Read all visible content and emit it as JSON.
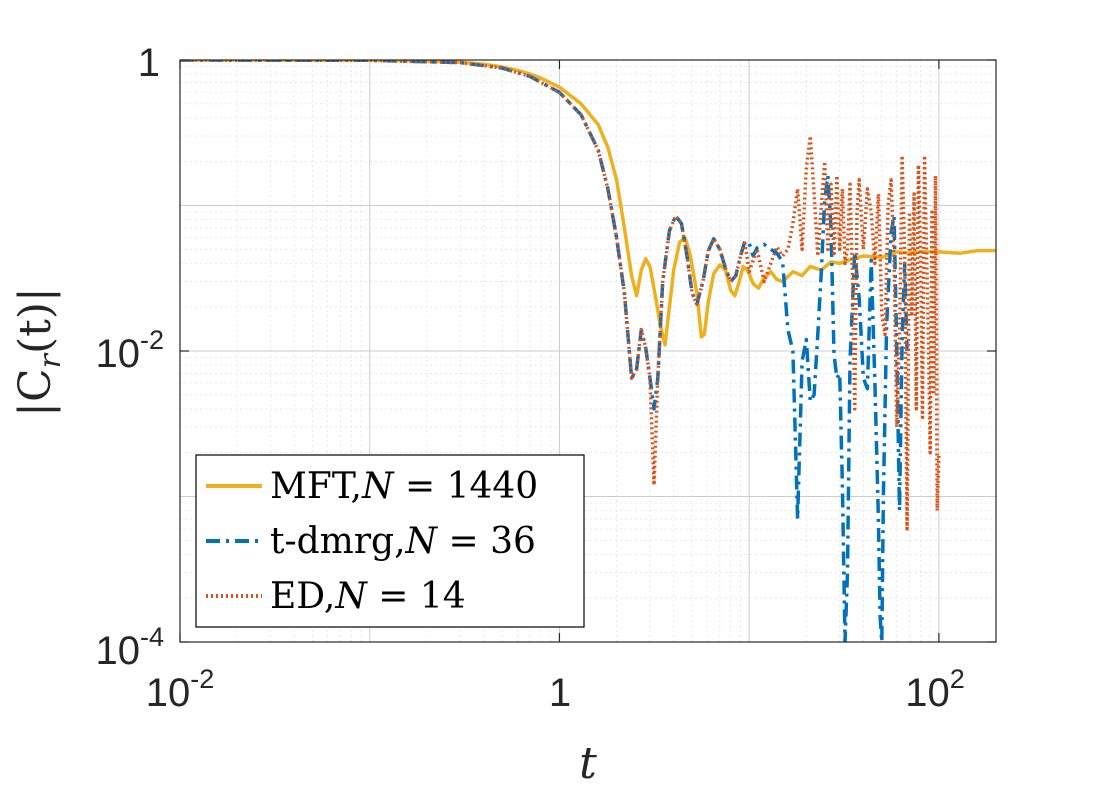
{
  "chart_data": {
    "type": "line",
    "xscale": "log",
    "yscale": "log",
    "xlim": [
      0.01,
      200
    ],
    "ylim": [
      0.0001,
      1
    ],
    "grid": true,
    "minor_grid": true,
    "xlabel": "t",
    "ylabel": "|C_r(t)|",
    "ylabel_display": "|C",
    "ylabel_sub": "r",
    "ylabel_tail": "(t)|",
    "xticks": [
      {
        "value": 0.01,
        "base": "10",
        "exp": "-2"
      },
      {
        "value": 1,
        "base": "1",
        "exp": ""
      },
      {
        "value": 100,
        "base": "10",
        "exp": "2"
      }
    ],
    "yticks": [
      {
        "value": 1,
        "base": "1",
        "exp": ""
      },
      {
        "value": 0.01,
        "base": "10",
        "exp": "-2"
      },
      {
        "value": 0.0001,
        "base": "10",
        "exp": "-4"
      }
    ],
    "legend_position": "bottom-left",
    "series": [
      {
        "name": "MFT,N = 1440",
        "label_prefix": "MFT,",
        "label_var": "N",
        "label_rest": " = 1440",
        "color": "#EDB120",
        "style": "solid",
        "points": [
          [
            0.01,
            1
          ],
          [
            0.05,
            0.999
          ],
          [
            0.1,
            0.995
          ],
          [
            0.2,
            0.985
          ],
          [
            0.3,
            0.965
          ],
          [
            0.4,
            0.935
          ],
          [
            0.5,
            0.895
          ],
          [
            0.6,
            0.85
          ],
          [
            0.7,
            0.8
          ],
          [
            0.8,
            0.75
          ],
          [
            1.0,
            0.65
          ],
          [
            1.3,
            0.5
          ],
          [
            1.6,
            0.36
          ],
          [
            1.8,
            0.25
          ],
          [
            2.0,
            0.15
          ],
          [
            2.2,
            0.07
          ],
          [
            2.4,
            0.033
          ],
          [
            2.55,
            0.024
          ],
          [
            2.7,
            0.036
          ],
          [
            2.85,
            0.043
          ],
          [
            3.0,
            0.038
          ],
          [
            3.2,
            0.024
          ],
          [
            3.4,
            0.015
          ],
          [
            3.6,
            0.011
          ],
          [
            3.8,
            0.02
          ],
          [
            4.0,
            0.036
          ],
          [
            4.3,
            0.056
          ],
          [
            4.6,
            0.06
          ],
          [
            4.9,
            0.045
          ],
          [
            5.3,
            0.025
          ],
          [
            5.6,
            0.0125
          ],
          [
            5.8,
            0.013
          ],
          [
            6.1,
            0.022
          ],
          [
            6.5,
            0.034
          ],
          [
            7.0,
            0.039
          ],
          [
            7.5,
            0.036
          ],
          [
            8.0,
            0.026
          ],
          [
            8.4,
            0.024
          ],
          [
            8.8,
            0.029
          ],
          [
            9.3,
            0.038
          ],
          [
            9.8,
            0.036
          ],
          [
            10.5,
            0.029
          ],
          [
            11.2,
            0.027
          ],
          [
            12,
            0.032
          ],
          [
            13,
            0.035
          ],
          [
            14,
            0.031
          ],
          [
            15,
            0.03
          ],
          [
            17,
            0.035
          ],
          [
            19,
            0.033
          ],
          [
            21,
            0.038
          ],
          [
            24,
            0.036
          ],
          [
            27,
            0.041
          ],
          [
            30,
            0.04
          ],
          [
            35,
            0.043
          ],
          [
            40,
            0.045
          ],
          [
            50,
            0.044
          ],
          [
            60,
            0.048
          ],
          [
            70,
            0.047
          ],
          [
            80,
            0.048
          ],
          [
            100,
            0.048
          ],
          [
            130,
            0.047
          ],
          [
            160,
            0.049
          ],
          [
            200,
            0.049
          ]
        ]
      },
      {
        "name": "t-dmrg,N = 36",
        "label_prefix": "t-dmrg,",
        "label_var": "N",
        "label_rest": " = 36",
        "color": "#0072BD",
        "style": "dashdot",
        "points": [
          [
            0.01,
            1
          ],
          [
            0.1,
            0.995
          ],
          [
            0.3,
            0.96
          ],
          [
            0.5,
            0.88
          ],
          [
            0.7,
            0.77
          ],
          [
            1.0,
            0.6
          ],
          [
            1.3,
            0.42
          ],
          [
            1.6,
            0.24
          ],
          [
            1.8,
            0.13
          ],
          [
            2.0,
            0.06
          ],
          [
            2.2,
            0.025
          ],
          [
            2.4,
            0.0065
          ],
          [
            2.55,
            0.0075
          ],
          [
            2.7,
            0.014
          ],
          [
            2.85,
            0.0105
          ],
          [
            3.0,
            0.0065
          ],
          [
            3.15,
            0.004
          ],
          [
            3.3,
            0.0065
          ],
          [
            3.5,
            0.03
          ],
          [
            3.8,
            0.067
          ],
          [
            4.1,
            0.085
          ],
          [
            4.4,
            0.075
          ],
          [
            4.7,
            0.045
          ],
          [
            5.0,
            0.025
          ],
          [
            5.3,
            0.021
          ],
          [
            5.7,
            0.03
          ],
          [
            6.1,
            0.049
          ],
          [
            6.5,
            0.059
          ],
          [
            7.0,
            0.05
          ],
          [
            7.5,
            0.037
          ],
          [
            8.0,
            0.03
          ],
          [
            8.5,
            0.033
          ],
          [
            9.0,
            0.045
          ],
          [
            9.5,
            0.057
          ],
          [
            10,
            0.055
          ],
          [
            10.5,
            0.045
          ],
          [
            11,
            0.051
          ],
          [
            12,
            0.054
          ],
          [
            13,
            0.05
          ],
          [
            14,
            0.047
          ],
          [
            15,
            0.041
          ],
          [
            16,
            0.014
          ],
          [
            17,
            0.01
          ],
          [
            18,
            0.0007
          ],
          [
            19,
            0.0085
          ],
          [
            20,
            0.012
          ],
          [
            21,
            0.0045
          ],
          [
            22,
            0.005
          ],
          [
            23,
            0.013
          ],
          [
            24,
            0.035
          ],
          [
            25,
            0.11
          ],
          [
            26,
            0.16
          ],
          [
            27,
            0.07
          ],
          [
            28,
            0.0095
          ],
          [
            29,
            0.0065
          ],
          [
            30,
            0.007
          ],
          [
            31,
            0.0012
          ],
          [
            32,
            0.0001
          ],
          [
            33,
            0.0003
          ],
          [
            34,
            0.0085
          ],
          [
            36,
            0.048
          ],
          [
            38,
            0.023
          ],
          [
            40,
            0.0065
          ],
          [
            42,
            0.0055
          ],
          [
            44,
            0.042
          ],
          [
            46,
            0.006
          ],
          [
            48,
            0.0007
          ],
          [
            49,
            0.00015
          ],
          [
            50,
            0.0001
          ],
          [
            51,
            0.001
          ],
          [
            53,
            0.015
          ],
          [
            56,
            0.065
          ],
          [
            58,
            0.085
          ],
          [
            60,
            0.01
          ],
          [
            62,
            0.0008
          ],
          [
            64,
            0.012
          ],
          [
            66,
            0.04
          ],
          [
            68,
            0.01
          ]
        ]
      },
      {
        "name": "ED,N = 14",
        "label_prefix": "ED,",
        "label_var": "N",
        "label_rest": " = 14",
        "color": "#D95319",
        "style": "dotted",
        "points": [
          [
            0.01,
            1
          ],
          [
            0.1,
            0.995
          ],
          [
            0.3,
            0.96
          ],
          [
            0.5,
            0.88
          ],
          [
            0.7,
            0.77
          ],
          [
            1.0,
            0.6
          ],
          [
            1.3,
            0.42
          ],
          [
            1.6,
            0.24
          ],
          [
            1.8,
            0.13
          ],
          [
            2.0,
            0.06
          ],
          [
            2.2,
            0.025
          ],
          [
            2.4,
            0.0065
          ],
          [
            2.55,
            0.0075
          ],
          [
            2.7,
            0.014
          ],
          [
            2.85,
            0.0105
          ],
          [
            3.0,
            0.0065
          ],
          [
            3.15,
            0.0012
          ],
          [
            3.3,
            0.0065
          ],
          [
            3.5,
            0.03
          ],
          [
            3.8,
            0.067
          ],
          [
            4.1,
            0.085
          ],
          [
            4.4,
            0.075
          ],
          [
            4.7,
            0.045
          ],
          [
            5.0,
            0.025
          ],
          [
            5.3,
            0.021
          ],
          [
            5.7,
            0.03
          ],
          [
            6.1,
            0.049
          ],
          [
            6.5,
            0.059
          ],
          [
            7.0,
            0.05
          ],
          [
            7.5,
            0.037
          ],
          [
            8.0,
            0.03
          ],
          [
            8.5,
            0.033
          ],
          [
            9.0,
            0.045
          ],
          [
            9.5,
            0.055
          ],
          [
            10,
            0.035
          ],
          [
            11,
            0.05
          ],
          [
            12,
            0.03
          ],
          [
            13,
            0.04
          ],
          [
            14,
            0.052
          ],
          [
            15,
            0.045
          ],
          [
            16,
            0.05
          ],
          [
            17,
            0.075
          ],
          [
            18,
            0.13
          ],
          [
            19,
            0.05
          ],
          [
            20,
            0.18
          ],
          [
            21,
            0.3
          ],
          [
            22,
            0.12
          ],
          [
            23,
            0.045
          ],
          [
            24,
            0.1
          ],
          [
            25,
            0.2
          ],
          [
            26,
            0.05
          ],
          [
            27,
            0.14
          ],
          [
            28,
            0.045
          ],
          [
            29,
            0.16
          ],
          [
            30,
            0.05
          ],
          [
            31,
            0.13
          ],
          [
            32,
            0.04
          ],
          [
            33,
            0.05
          ],
          [
            34,
            0.14
          ],
          [
            35,
            0.035
          ],
          [
            36,
            0.004
          ],
          [
            37,
            0.09
          ],
          [
            38,
            0.15
          ],
          [
            40,
            0.05
          ],
          [
            42,
            0.13
          ],
          [
            44,
            0.09
          ],
          [
            46,
            0.04
          ],
          [
            48,
            0.12
          ],
          [
            50,
            0.018
          ],
          [
            52,
            0.013
          ],
          [
            54,
            0.1
          ],
          [
            56,
            0.15
          ],
          [
            58,
            0.045
          ],
          [
            60,
            0.003
          ],
          [
            62,
            0.012
          ],
          [
            64,
            0.22
          ],
          [
            66,
            0.045
          ],
          [
            68,
            0.0006
          ],
          [
            70,
            0.09
          ],
          [
            72,
            0.018
          ],
          [
            74,
            0.12
          ],
          [
            76,
            0.004
          ],
          [
            78,
            0.19
          ],
          [
            80,
            0.05
          ],
          [
            82,
            0.0035
          ],
          [
            84,
            0.22
          ],
          [
            86,
            0.05
          ],
          [
            88,
            0.012
          ],
          [
            90,
            0.002
          ],
          [
            92,
            0.09
          ],
          [
            94,
            0.005
          ],
          [
            96,
            0.16
          ],
          [
            98,
            0.0008
          ],
          [
            100,
            0.002
          ]
        ]
      }
    ]
  }
}
